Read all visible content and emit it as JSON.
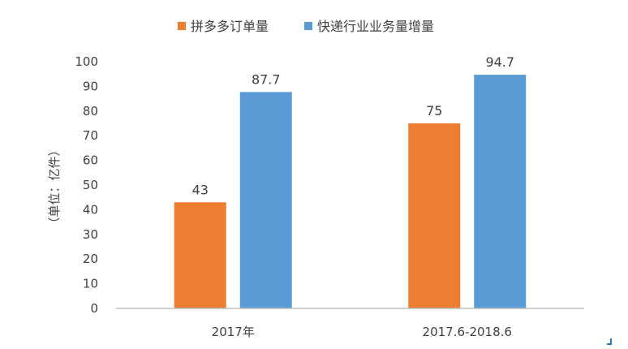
{
  "chart_data": {
    "type": "bar",
    "categories": [
      "2017年",
      "2017.6-2018.6"
    ],
    "series": [
      {
        "name": "拼多多订单量",
        "values": [
          43,
          75
        ],
        "color": "#ed7d31"
      },
      {
        "name": "快递行业业务量增量",
        "values": [
          87.7,
          94.7
        ],
        "color": "#5b9bd5"
      }
    ],
    "ylabel": "（单位：亿件）",
    "ylim": [
      0,
      100
    ],
    "yticks": [
      0,
      10,
      20,
      30,
      40,
      50,
      60,
      70,
      80,
      90,
      100
    ],
    "grid": false,
    "legend": "top-center",
    "axis_color": "#bfbfbf"
  }
}
